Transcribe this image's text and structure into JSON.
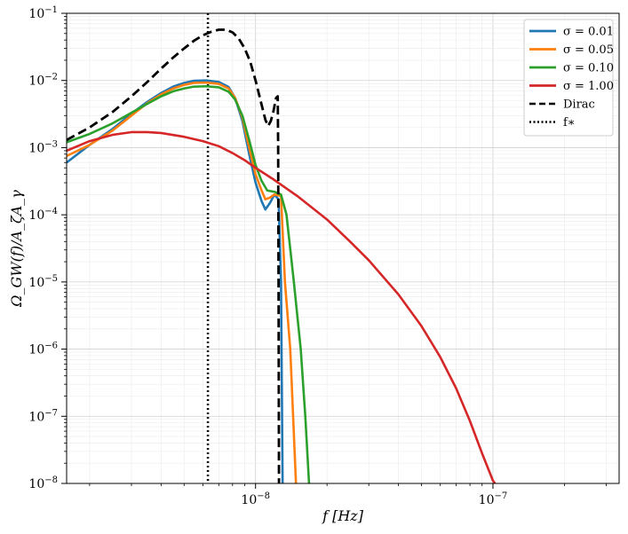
{
  "chart_data": {
    "type": "line",
    "title": "",
    "xlabel": "f [Hz]",
    "ylabel": "Ω_GW(f)/A_ζA_γ",
    "x_scale": "log",
    "y_scale": "log",
    "xlim": [
      1.6e-09,
      3.4e-07
    ],
    "ylim": [
      1e-08,
      0.1
    ],
    "grid": true,
    "legend_position": "top-right",
    "x_ticks": [
      {
        "value": 1e-08,
        "base": "10",
        "exp": "−8"
      },
      {
        "value": 1e-07,
        "base": "10",
        "exp": "−7"
      }
    ],
    "y_ticks": [
      {
        "value": 1e-08,
        "base": "10",
        "exp": "−8"
      },
      {
        "value": 1e-07,
        "base": "10",
        "exp": "−7"
      },
      {
        "value": 1e-06,
        "base": "10",
        "exp": "−6"
      },
      {
        "value": 1e-05,
        "base": "10",
        "exp": "−5"
      },
      {
        "value": 0.0001,
        "base": "10",
        "exp": "−4"
      },
      {
        "value": 0.001,
        "base": "10",
        "exp": "−3"
      },
      {
        "value": 0.01,
        "base": "10",
        "exp": "−2"
      },
      {
        "value": 0.1,
        "base": "10",
        "exp": "−1"
      }
    ],
    "series": [
      {
        "name": "σ = 0.01",
        "color": "#1f77b4",
        "style": "solid",
        "points": [
          [
            1.6e-09,
            0.0006
          ],
          [
            2e-09,
            0.0011
          ],
          [
            2.5e-09,
            0.0019
          ],
          [
            3e-09,
            0.0032
          ],
          [
            3.5e-09,
            0.0048
          ],
          [
            4e-09,
            0.0065
          ],
          [
            4.5e-09,
            0.0081
          ],
          [
            5e-09,
            0.0092
          ],
          [
            5.5e-09,
            0.0099
          ],
          [
            6.2e-09,
            0.01
          ],
          [
            7e-09,
            0.0095
          ],
          [
            7.7e-09,
            0.008
          ],
          [
            8.2e-09,
            0.0055
          ],
          [
            8.8e-09,
            0.0025
          ],
          [
            9.4e-09,
            0.0008
          ],
          [
            1e-08,
            0.0003
          ],
          [
            1.06e-08,
            0.00016
          ],
          [
            1.1e-08,
            0.00012
          ],
          [
            1.15e-08,
            0.00015
          ],
          [
            1.2e-08,
            0.0002
          ],
          [
            1.25e-08,
            0.00017
          ],
          [
            1.28e-08,
            1e-05
          ],
          [
            1.3e-08,
            1e-08
          ]
        ]
      },
      {
        "name": "σ = 0.05",
        "color": "#ff7f0e",
        "style": "solid",
        "points": [
          [
            1.6e-09,
            0.00075
          ],
          [
            2e-09,
            0.0011
          ],
          [
            2.5e-09,
            0.0018
          ],
          [
            3e-09,
            0.003
          ],
          [
            3.5e-09,
            0.0046
          ],
          [
            4e-09,
            0.0062
          ],
          [
            4.5e-09,
            0.0076
          ],
          [
            5e-09,
            0.0086
          ],
          [
            5.5e-09,
            0.0092
          ],
          [
            6.2e-09,
            0.0093
          ],
          [
            7e-09,
            0.0089
          ],
          [
            7.7e-09,
            0.0076
          ],
          [
            8.2e-09,
            0.0055
          ],
          [
            8.8e-09,
            0.0028
          ],
          [
            9.4e-09,
            0.001
          ],
          [
            1e-08,
            0.0004
          ],
          [
            1.06e-08,
            0.00023
          ],
          [
            1.1e-08,
            0.00017
          ],
          [
            1.15e-08,
            0.00018
          ],
          [
            1.2e-08,
            0.0002
          ],
          [
            1.28e-08,
            0.00019
          ],
          [
            1.33e-08,
            1e-05
          ],
          [
            1.4e-08,
            1e-06
          ],
          [
            1.48e-08,
            1e-08
          ]
        ]
      },
      {
        "name": "σ = 0.10",
        "color": "#2ca02c",
        "style": "solid",
        "points": [
          [
            1.6e-09,
            0.0012
          ],
          [
            2e-09,
            0.0016
          ],
          [
            2.5e-09,
            0.0023
          ],
          [
            3e-09,
            0.0033
          ],
          [
            3.5e-09,
            0.0045
          ],
          [
            4e-09,
            0.0058
          ],
          [
            4.5e-09,
            0.0069
          ],
          [
            5e-09,
            0.0076
          ],
          [
            5.5e-09,
            0.0081
          ],
          [
            6.2e-09,
            0.0082
          ],
          [
            7e-09,
            0.0079
          ],
          [
            7.7e-09,
            0.0068
          ],
          [
            8.2e-09,
            0.0052
          ],
          [
            8.8e-09,
            0.003
          ],
          [
            9.4e-09,
            0.0013
          ],
          [
            1e-08,
            0.00055
          ],
          [
            1.06e-08,
            0.00032
          ],
          [
            1.12e-08,
            0.00023
          ],
          [
            1.2e-08,
            0.00022
          ],
          [
            1.28e-08,
            0.0002
          ],
          [
            1.35e-08,
            0.0001
          ],
          [
            1.45e-08,
            1e-05
          ],
          [
            1.55e-08,
            1e-06
          ],
          [
            1.62e-08,
            1e-07
          ],
          [
            1.68e-08,
            1e-08
          ]
        ]
      },
      {
        "name": "σ = 1.00",
        "color": "#d62728",
        "style": "solid",
        "points": [
          [
            1.6e-09,
            0.0009
          ],
          [
            2e-09,
            0.00125
          ],
          [
            2.5e-09,
            0.00155
          ],
          [
            3e-09,
            0.0017
          ],
          [
            3.5e-09,
            0.0017
          ],
          [
            4e-09,
            0.00165
          ],
          [
            5e-09,
            0.00145
          ],
          [
            6e-09,
            0.00125
          ],
          [
            7e-09,
            0.00105
          ],
          [
            8e-09,
            0.00083
          ],
          [
            9e-09,
            0.00065
          ],
          [
            1e-08,
            0.0005
          ],
          [
            1.2e-08,
            0.00033
          ],
          [
            1.5e-08,
            0.00019
          ],
          [
            2e-08,
            8.5e-05
          ],
          [
            2.5e-08,
            4e-05
          ],
          [
            3e-08,
            2.1e-05
          ],
          [
            4e-08,
            6.5e-06
          ],
          [
            5e-08,
            2.2e-06
          ],
          [
            6e-08,
            7.6e-07
          ],
          [
            7e-08,
            2.6e-07
          ],
          [
            8e-08,
            8.5e-08
          ],
          [
            9e-08,
            2.8e-08
          ],
          [
            1e-07,
            1.1e-08
          ],
          [
            1.02e-07,
            1e-08
          ]
        ]
      },
      {
        "name": "Dirac",
        "color": "#000000",
        "style": "dashed",
        "points": [
          [
            1.6e-09,
            0.0013
          ],
          [
            2e-09,
            0.002
          ],
          [
            2.5e-09,
            0.0034
          ],
          [
            3e-09,
            0.0058
          ],
          [
            3.5e-09,
            0.0095
          ],
          [
            4e-09,
            0.015
          ],
          [
            4.5e-09,
            0.022
          ],
          [
            5e-09,
            0.03
          ],
          [
            5.5e-09,
            0.039
          ],
          [
            6e-09,
            0.047
          ],
          [
            6.5e-09,
            0.053
          ],
          [
            7e-09,
            0.057
          ],
          [
            7.5e-09,
            0.057
          ],
          [
            8e-09,
            0.052
          ],
          [
            8.5e-09,
            0.042
          ],
          [
            9e-09,
            0.03
          ],
          [
            9.5e-09,
            0.019
          ],
          [
            1e-08,
            0.01
          ],
          [
            1.05e-08,
            0.005
          ],
          [
            1.1e-08,
            0.0026
          ],
          [
            1.13e-08,
            0.0021
          ],
          [
            1.16e-08,
            0.0025
          ],
          [
            1.19e-08,
            0.0035
          ],
          [
            1.22e-08,
            0.0055
          ],
          [
            1.24e-08,
            0.0058
          ],
          [
            1.245e-08,
            0.001
          ],
          [
            1.25e-08,
            1e-05
          ],
          [
            1.255e-08,
            1e-08
          ]
        ]
      }
    ],
    "vlines": [
      {
        "name": "f_*",
        "x": 6.3e-09,
        "color": "#000000",
        "style": "dotted"
      }
    ],
    "legend": [
      {
        "label": "σ = 0.01",
        "color": "#1f77b4",
        "style": "solid"
      },
      {
        "label": "σ = 0.05",
        "color": "#ff7f0e",
        "style": "solid"
      },
      {
        "label": "σ = 0.10",
        "color": "#2ca02c",
        "style": "solid"
      },
      {
        "label": "σ = 1.00",
        "color": "#d62728",
        "style": "solid"
      },
      {
        "label": "Dirac",
        "color": "#000000",
        "style": "dashed"
      },
      {
        "label": "f∗",
        "color": "#000000",
        "style": "dotted"
      }
    ]
  }
}
